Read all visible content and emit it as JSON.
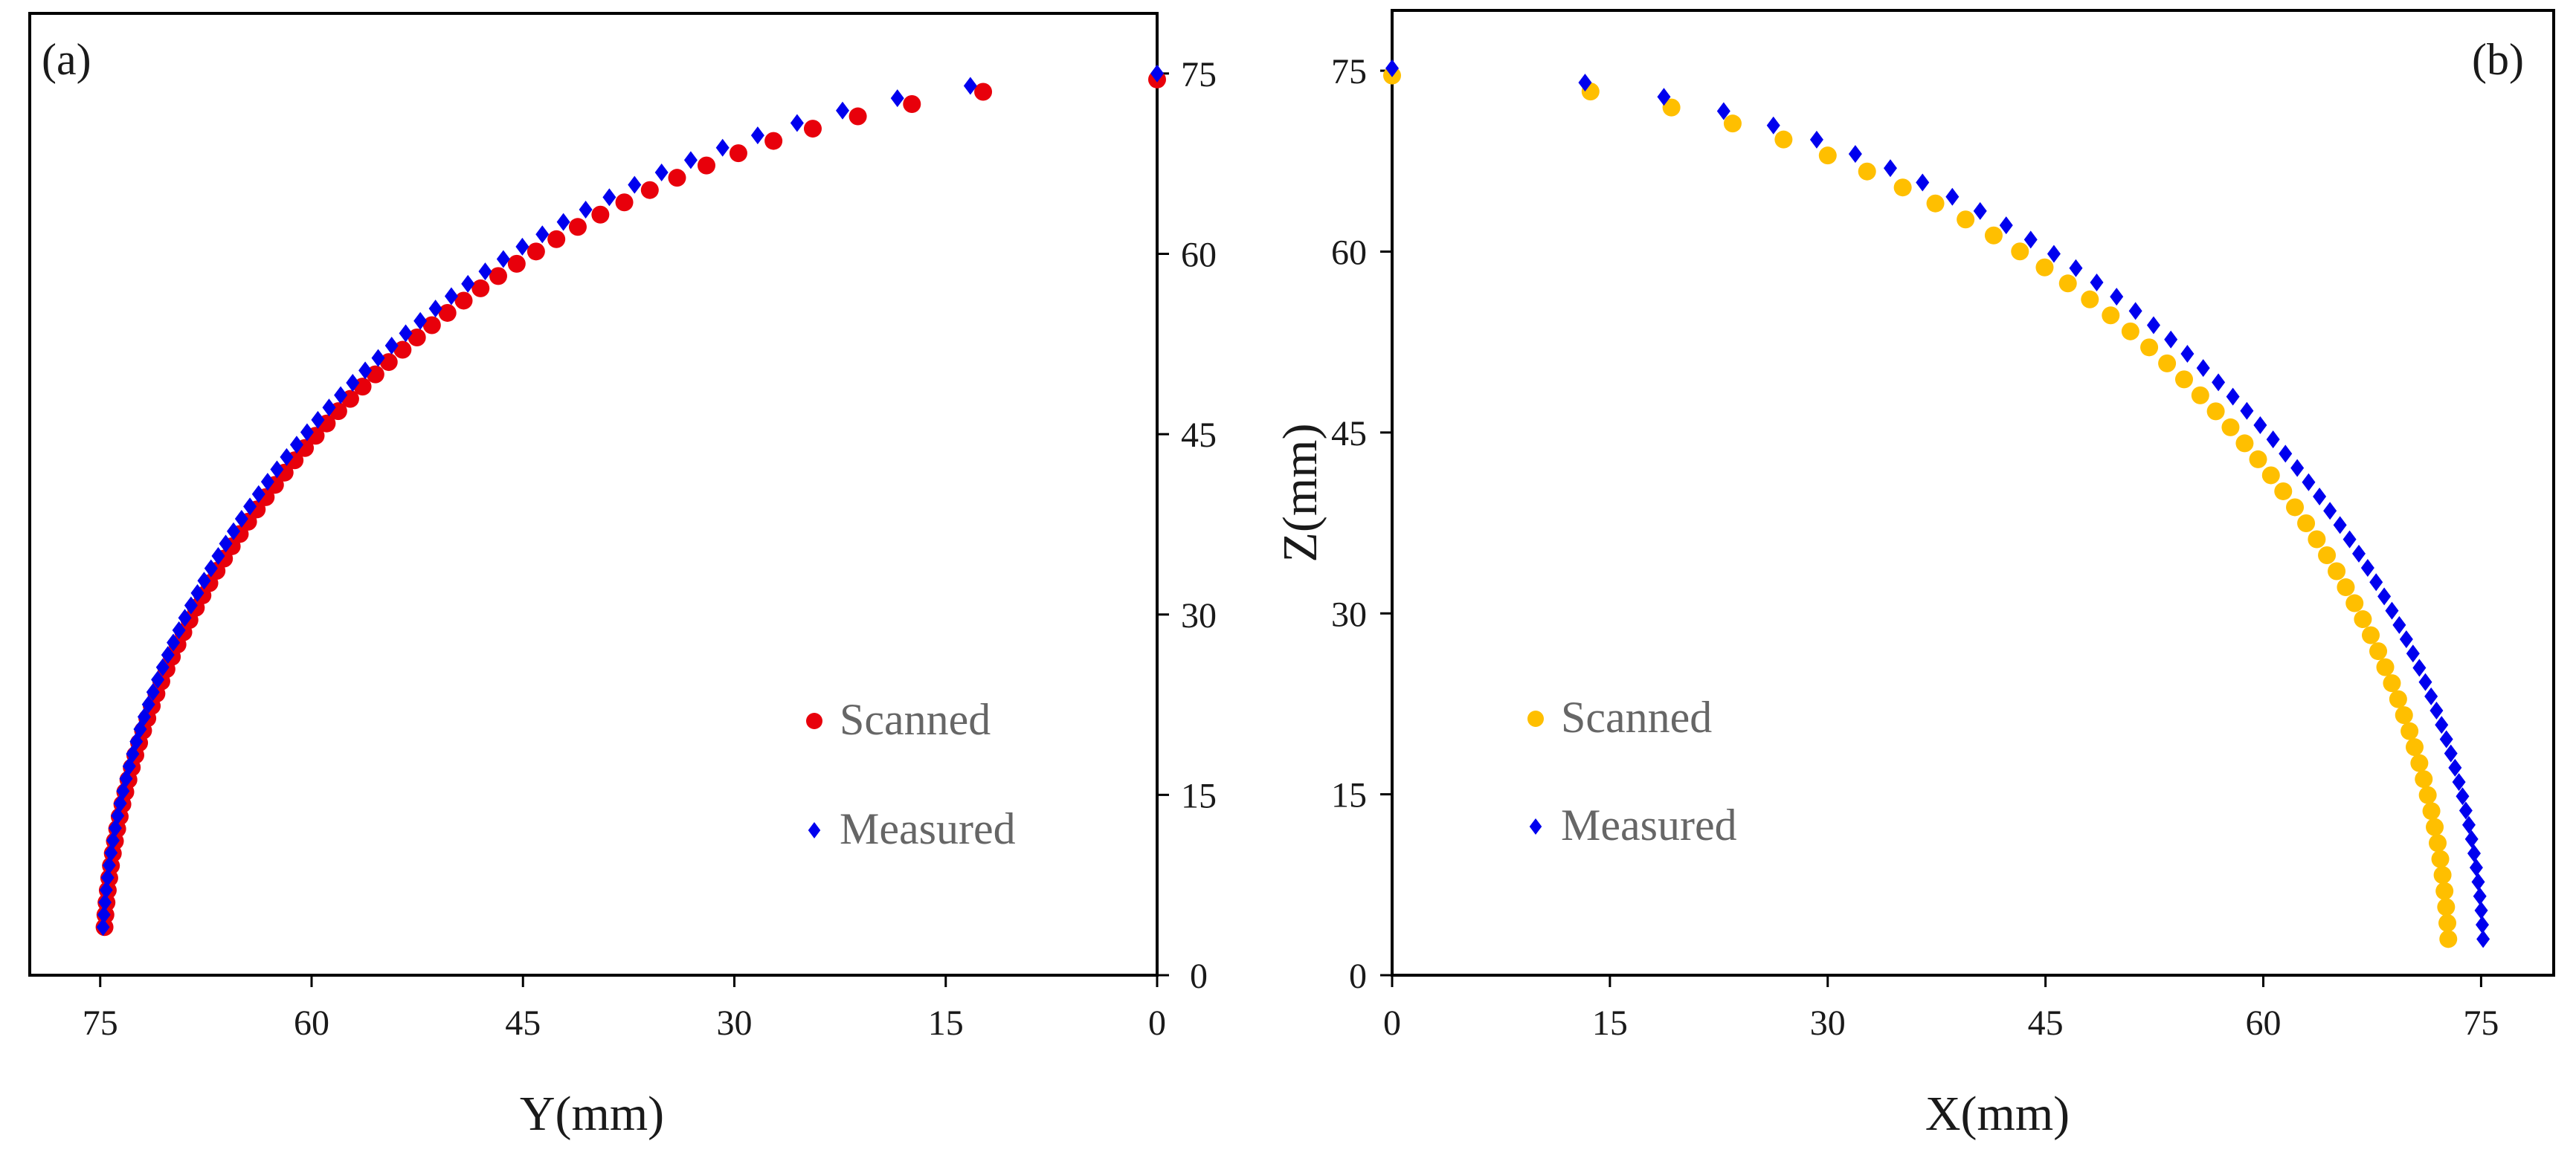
{
  "colors": {
    "scanned_a": "#e8000b",
    "scanned_b": "#ffbf00",
    "measured": "#0000ee",
    "axis": "#000000"
  },
  "chart_data": [
    {
      "panel_label": "(a)",
      "type": "scatter",
      "xlabel": "Y(mm)",
      "ylabel": "",
      "xlim": [
        80,
        0
      ],
      "ylim": [
        0,
        80
      ],
      "xticks": [
        75,
        60,
        45,
        30,
        15,
        0
      ],
      "yticks": [
        0,
        15,
        30,
        45,
        60,
        75
      ],
      "yaxis_side": "right",
      "legend_position": "bottom-right",
      "series": [
        {
          "name": "Scanned",
          "marker": "circle",
          "color": "scanned_a",
          "curve": {
            "kind": "quarter_ellipse",
            "a": 74.8,
            "b": 74.5,
            "z_min": 4,
            "n": 70
          }
        },
        {
          "name": "Measured",
          "marker": "diamond",
          "color": "measured",
          "curve": {
            "kind": "quarter_ellipse",
            "a": 74.9,
            "b": 75.0,
            "z_min": 4,
            "n": 70,
            "shape": 1.04
          }
        }
      ]
    },
    {
      "panel_label": "(b)",
      "type": "scatter",
      "xlabel": "X(mm)",
      "ylabel": "Z(mm)",
      "xlim": [
        0,
        80
      ],
      "ylim": [
        0,
        80
      ],
      "xticks": [
        0,
        15,
        30,
        45,
        60,
        75
      ],
      "yticks": [
        0,
        15,
        30,
        45,
        60,
        75
      ],
      "yaxis_side": "left",
      "legend_position": "bottom-left",
      "series": [
        {
          "name": "Scanned",
          "marker": "circle",
          "color": "scanned_b",
          "curve": {
            "kind": "quarter_ellipse",
            "a": 72.8,
            "b": 74.6,
            "z_min": 3,
            "n": 55
          }
        },
        {
          "name": "Measured",
          "marker": "diamond",
          "color": "measured",
          "curve": {
            "kind": "quarter_ellipse",
            "a": 75.2,
            "b": 75.2,
            "z_min": 3,
            "n": 62
          }
        }
      ]
    }
  ]
}
